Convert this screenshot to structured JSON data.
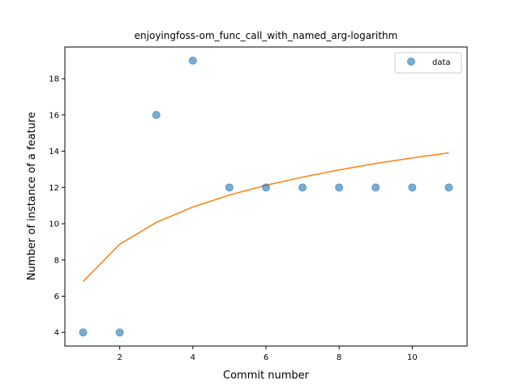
{
  "chart_data": {
    "type": "scatter",
    "title": "enjoyingfoss-om_func_call_with_named_arg-logarithm",
    "xlabel": "Commit number",
    "ylabel": "Number of instance of a feature",
    "xlim": [
      0.5,
      11.5
    ],
    "ylim": [
      3.25,
      19.75
    ],
    "xticks": [
      2,
      4,
      6,
      8,
      10
    ],
    "yticks": [
      4,
      6,
      8,
      10,
      12,
      14,
      16,
      18
    ],
    "grid": false,
    "legend": {
      "position": "top-right",
      "entries": [
        "data"
      ]
    },
    "series": [
      {
        "name": "data",
        "kind": "scatter",
        "color": "#1f77b4",
        "x": [
          1,
          2,
          3,
          4,
          5,
          6,
          7,
          8,
          9,
          10,
          11
        ],
        "y": [
          4,
          4,
          16,
          19,
          12,
          12,
          12,
          12,
          12,
          12,
          12
        ]
      },
      {
        "kind": "line",
        "color": "#ff7f0e",
        "x": [
          1,
          2,
          3,
          4,
          5,
          6,
          7,
          8,
          9,
          10,
          11
        ],
        "y": [
          6.82,
          8.87,
          10.07,
          10.92,
          11.58,
          12.12,
          12.57,
          12.97,
          13.32,
          13.63,
          13.91
        ]
      }
    ]
  }
}
